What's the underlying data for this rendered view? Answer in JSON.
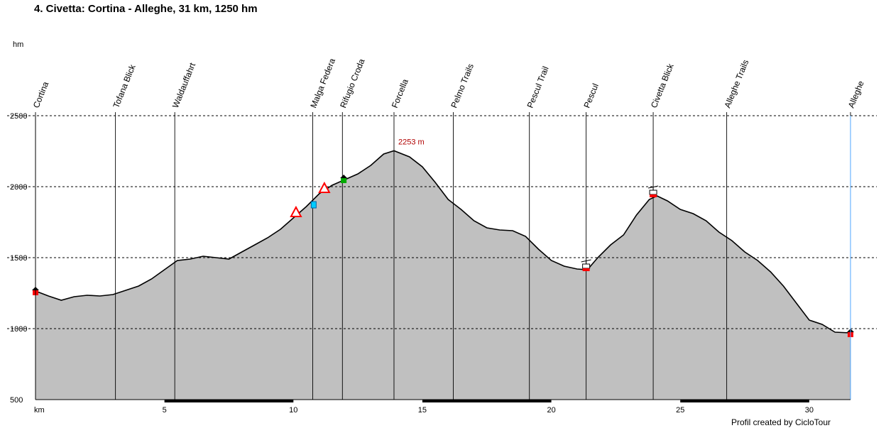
{
  "title": "4. Civetta: Cortina - Alleghe, 31 km, 1250 hm",
  "credit": "Profil created by CicloTour",
  "chart_data": {
    "type": "area",
    "title": "4. Civetta: Cortina - Alleghe, 31 km, 1250 hm",
    "xlabel": "km",
    "ylabel": "hm",
    "xlim": [
      0,
      31.6
    ],
    "ylim": [
      500,
      2500
    ],
    "x_ticks": [
      5,
      10,
      15,
      20,
      25,
      30
    ],
    "y_ticks": [
      500,
      1000,
      1500,
      2000,
      2500
    ],
    "grid": "horizontal dashed",
    "fill_color": "#c0c0c0",
    "max_label": "2253 m",
    "max_point": {
      "x": 13.9,
      "y": 2253
    },
    "series": [
      {
        "x": [
          0,
          0.5,
          1,
          1.5,
          2,
          2.5,
          3,
          3.5,
          4,
          4.5,
          5,
          5.5,
          6,
          6.5,
          7,
          7.5,
          8,
          8.5,
          9,
          9.5,
          10,
          10.5,
          11,
          11.5,
          12,
          12.5,
          13,
          13.5,
          13.9,
          14.5,
          15,
          15.5,
          16,
          16.5,
          17,
          17.5,
          18,
          18.5,
          19,
          19.5,
          20,
          20.5,
          21,
          21.4,
          21.8,
          22.3,
          22.8,
          23.3,
          23.8,
          24.1,
          24.5,
          25,
          25.5,
          26,
          26.5,
          27,
          27.5,
          28,
          28.5,
          29,
          29.5,
          30,
          30.5,
          31,
          31.6
        ],
        "y": [
          1265,
          1230,
          1200,
          1225,
          1235,
          1230,
          1240,
          1270,
          1300,
          1350,
          1415,
          1480,
          1490,
          1510,
          1500,
          1490,
          1540,
          1590,
          1640,
          1700,
          1780,
          1860,
          1950,
          2010,
          2050,
          2090,
          2150,
          2230,
          2253,
          2210,
          2140,
          2030,
          1910,
          1840,
          1760,
          1710,
          1695,
          1690,
          1650,
          1560,
          1480,
          1440,
          1420,
          1415,
          1500,
          1590,
          1660,
          1800,
          1910,
          1935,
          1900,
          1840,
          1810,
          1760,
          1680,
          1620,
          1540,
          1480,
          1400,
          1300,
          1180,
          1060,
          1030,
          975,
          970
        ]
      }
    ],
    "waypoints": [
      {
        "label": "Cortina",
        "km": 0.0
      },
      {
        "label": "Tofana Blick",
        "km": 3.1
      },
      {
        "label": "Waldauffahrt",
        "km": 5.4
      },
      {
        "label": "Malga Federa",
        "km": 10.75
      },
      {
        "label": "Rifugio Croda",
        "km": 11.9
      },
      {
        "label": "Forcella",
        "km": 13.9
      },
      {
        "label": "Pelmo Trails",
        "km": 16.2
      },
      {
        "label": "Pescul Trail",
        "km": 19.15
      },
      {
        "label": "Pescul",
        "km": 21.35
      },
      {
        "label": "Civetta Blick",
        "km": 23.95
      },
      {
        "label": "Alleghe Trails",
        "km": 26.8
      },
      {
        "label": "Alleghe",
        "km": 31.6
      }
    ],
    "markers": [
      {
        "icon": "start-house-icon",
        "km": 0.0,
        "elev": 1265,
        "color": "#ff0000"
      },
      {
        "icon": "warning-triangle-icon",
        "km": 10.1,
        "elev": 1790,
        "color": "#ff0000"
      },
      {
        "icon": "water-icon",
        "km": 10.8,
        "elev": 1870,
        "color": "#00ccff"
      },
      {
        "icon": "warning-triangle-icon",
        "km": 11.2,
        "elev": 1960,
        "color": "#ff0000"
      },
      {
        "icon": "hut-icon",
        "km": 11.95,
        "elev": 2050,
        "color": "#00aa00"
      },
      {
        "icon": "cable-car-icon",
        "km": 21.35,
        "elev": 1415,
        "color": "#ff0000"
      },
      {
        "icon": "cable-car-icon",
        "km": 23.95,
        "elev": 1935,
        "color": "#ff0000"
      },
      {
        "icon": "end-house-icon",
        "km": 31.6,
        "elev": 970,
        "color": "#ff0000"
      }
    ],
    "km_bands": [
      [
        5,
        10
      ],
      [
        15,
        20
      ],
      [
        25,
        30
      ]
    ]
  }
}
